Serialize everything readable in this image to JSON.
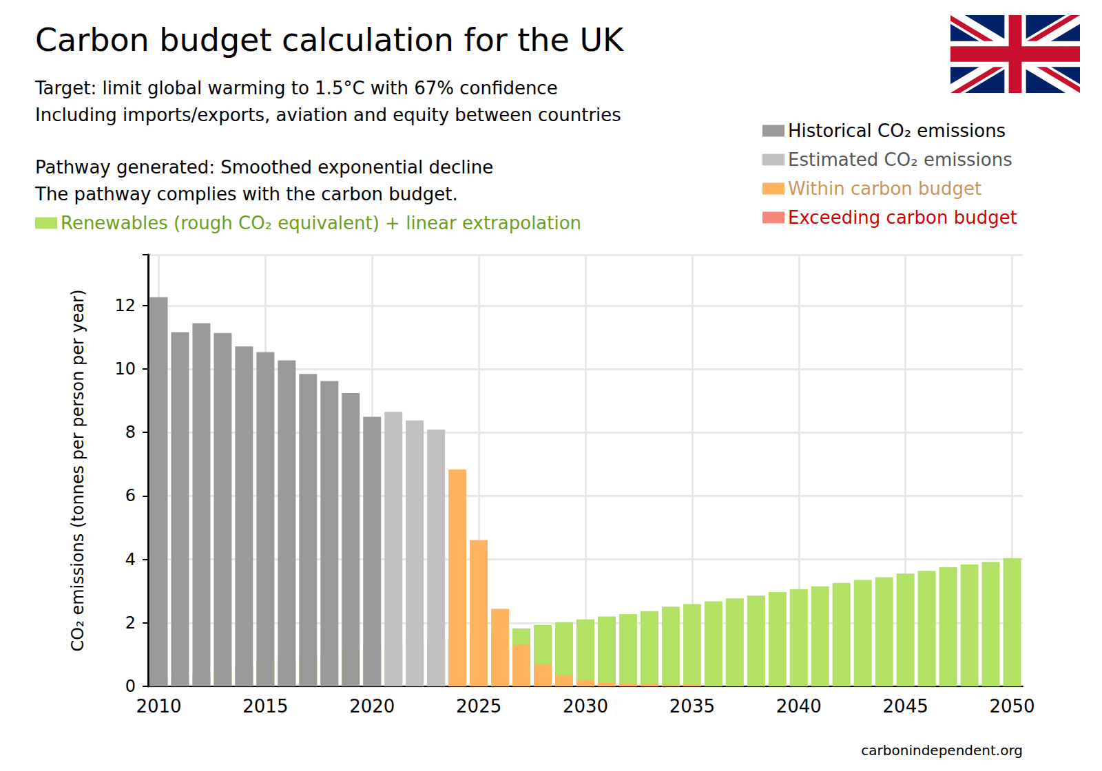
{
  "chart_data": {
    "type": "bar",
    "title": "Carbon budget calculation for the UK",
    "subtitle": [
      "Target: limit global warming to 1.5°C with 67% confidence",
      "Including imports/exports, aviation and equity between countries"
    ],
    "annotations": [
      "Pathway generated: Smoothed exponential decline",
      "The pathway complies with the carbon budget.",
      "carbonindependent.org"
    ],
    "y_label": "CO₂ emissions (tonnes per person per year)",
    "x": [
      2010,
      2011,
      2012,
      2013,
      2014,
      2015,
      2016,
      2017,
      2018,
      2019,
      2020,
      2021,
      2022,
      2023,
      2024,
      2025,
      2026,
      2027,
      2028,
      2029,
      2030,
      2031,
      2032,
      2033,
      2034,
      2035,
      2036,
      2037,
      2038,
      2039,
      2040,
      2041,
      2042,
      2043,
      2044,
      2045,
      2046,
      2047,
      2048,
      2049,
      2050
    ],
    "series": [
      {
        "name": "Renewables (rough CO₂ equivalent) + linear extrapolation",
        "color": "#b3e166",
        "values": [
          0.24,
          0.33,
          0.4,
          0.49,
          0.64,
          0.84,
          0.82,
          0.98,
          1.09,
          1.2,
          1.33,
          1.24,
          1.35,
          1.44,
          1.53,
          1.64,
          1.73,
          1.82,
          1.93,
          2.02,
          2.11,
          2.2,
          2.28,
          2.37,
          2.51,
          2.59,
          2.68,
          2.77,
          2.86,
          2.97,
          3.06,
          3.15,
          3.26,
          3.35,
          3.44,
          3.55,
          3.64,
          3.75,
          3.84,
          3.92,
          4.04
        ]
      },
      {
        "name": "Historical CO₂ emissions",
        "color": "#999999",
        "values": [
          12.26,
          11.16,
          11.44,
          11.13,
          10.71,
          10.53,
          10.27,
          9.84,
          9.62,
          9.24,
          8.49,
          null,
          null,
          null,
          null,
          null,
          null,
          null,
          null,
          null,
          null,
          null,
          null,
          null,
          null,
          null,
          null,
          null,
          null,
          null,
          null,
          null,
          null,
          null,
          null,
          null,
          null,
          null,
          null,
          null,
          null
        ]
      },
      {
        "name": "Estimated CO₂ emissions",
        "color": "#c0c0c0",
        "values": [
          null,
          null,
          null,
          null,
          null,
          null,
          null,
          null,
          null,
          null,
          null,
          8.65,
          8.38,
          8.09,
          null,
          null,
          null,
          null,
          null,
          null,
          null,
          null,
          null,
          null,
          null,
          null,
          null,
          null,
          null,
          null,
          null,
          null,
          null,
          null,
          null,
          null,
          null,
          null,
          null,
          null,
          null
        ]
      },
      {
        "name": "Within carbon budget",
        "color": "#fdb35f",
        "values": [
          null,
          null,
          null,
          null,
          null,
          null,
          null,
          null,
          null,
          null,
          null,
          null,
          null,
          null,
          6.83,
          4.61,
          2.44,
          1.31,
          0.69,
          0.35,
          0.2,
          0.11,
          0.09,
          0.07,
          0.04,
          0.05,
          null,
          null,
          null,
          null,
          null,
          null,
          null,
          null,
          null,
          null,
          null,
          null,
          null,
          null,
          null
        ]
      },
      {
        "name": "Exceeding carbon budget",
        "color": "#f8877a",
        "values": [
          null,
          null,
          null,
          null,
          null,
          null,
          null,
          null,
          null,
          null,
          null,
          null,
          null,
          null,
          null,
          null,
          null,
          null,
          null,
          null,
          null,
          null,
          null,
          null,
          null,
          null,
          null,
          null,
          null,
          null,
          null,
          null,
          null,
          null,
          null,
          null,
          null,
          null,
          null,
          null,
          null
        ]
      }
    ],
    "stacked": true,
    "xlim": [
      2009.5,
      2050.5
    ],
    "xticks": [
      2010,
      2015,
      2020,
      2025,
      2030,
      2035,
      2040,
      2045,
      2050
    ],
    "ylim": [
      0,
      13.6
    ],
    "yticks": [
      0,
      2,
      4,
      6,
      8,
      10,
      12
    ],
    "grid": true,
    "legend": "top right"
  }
}
